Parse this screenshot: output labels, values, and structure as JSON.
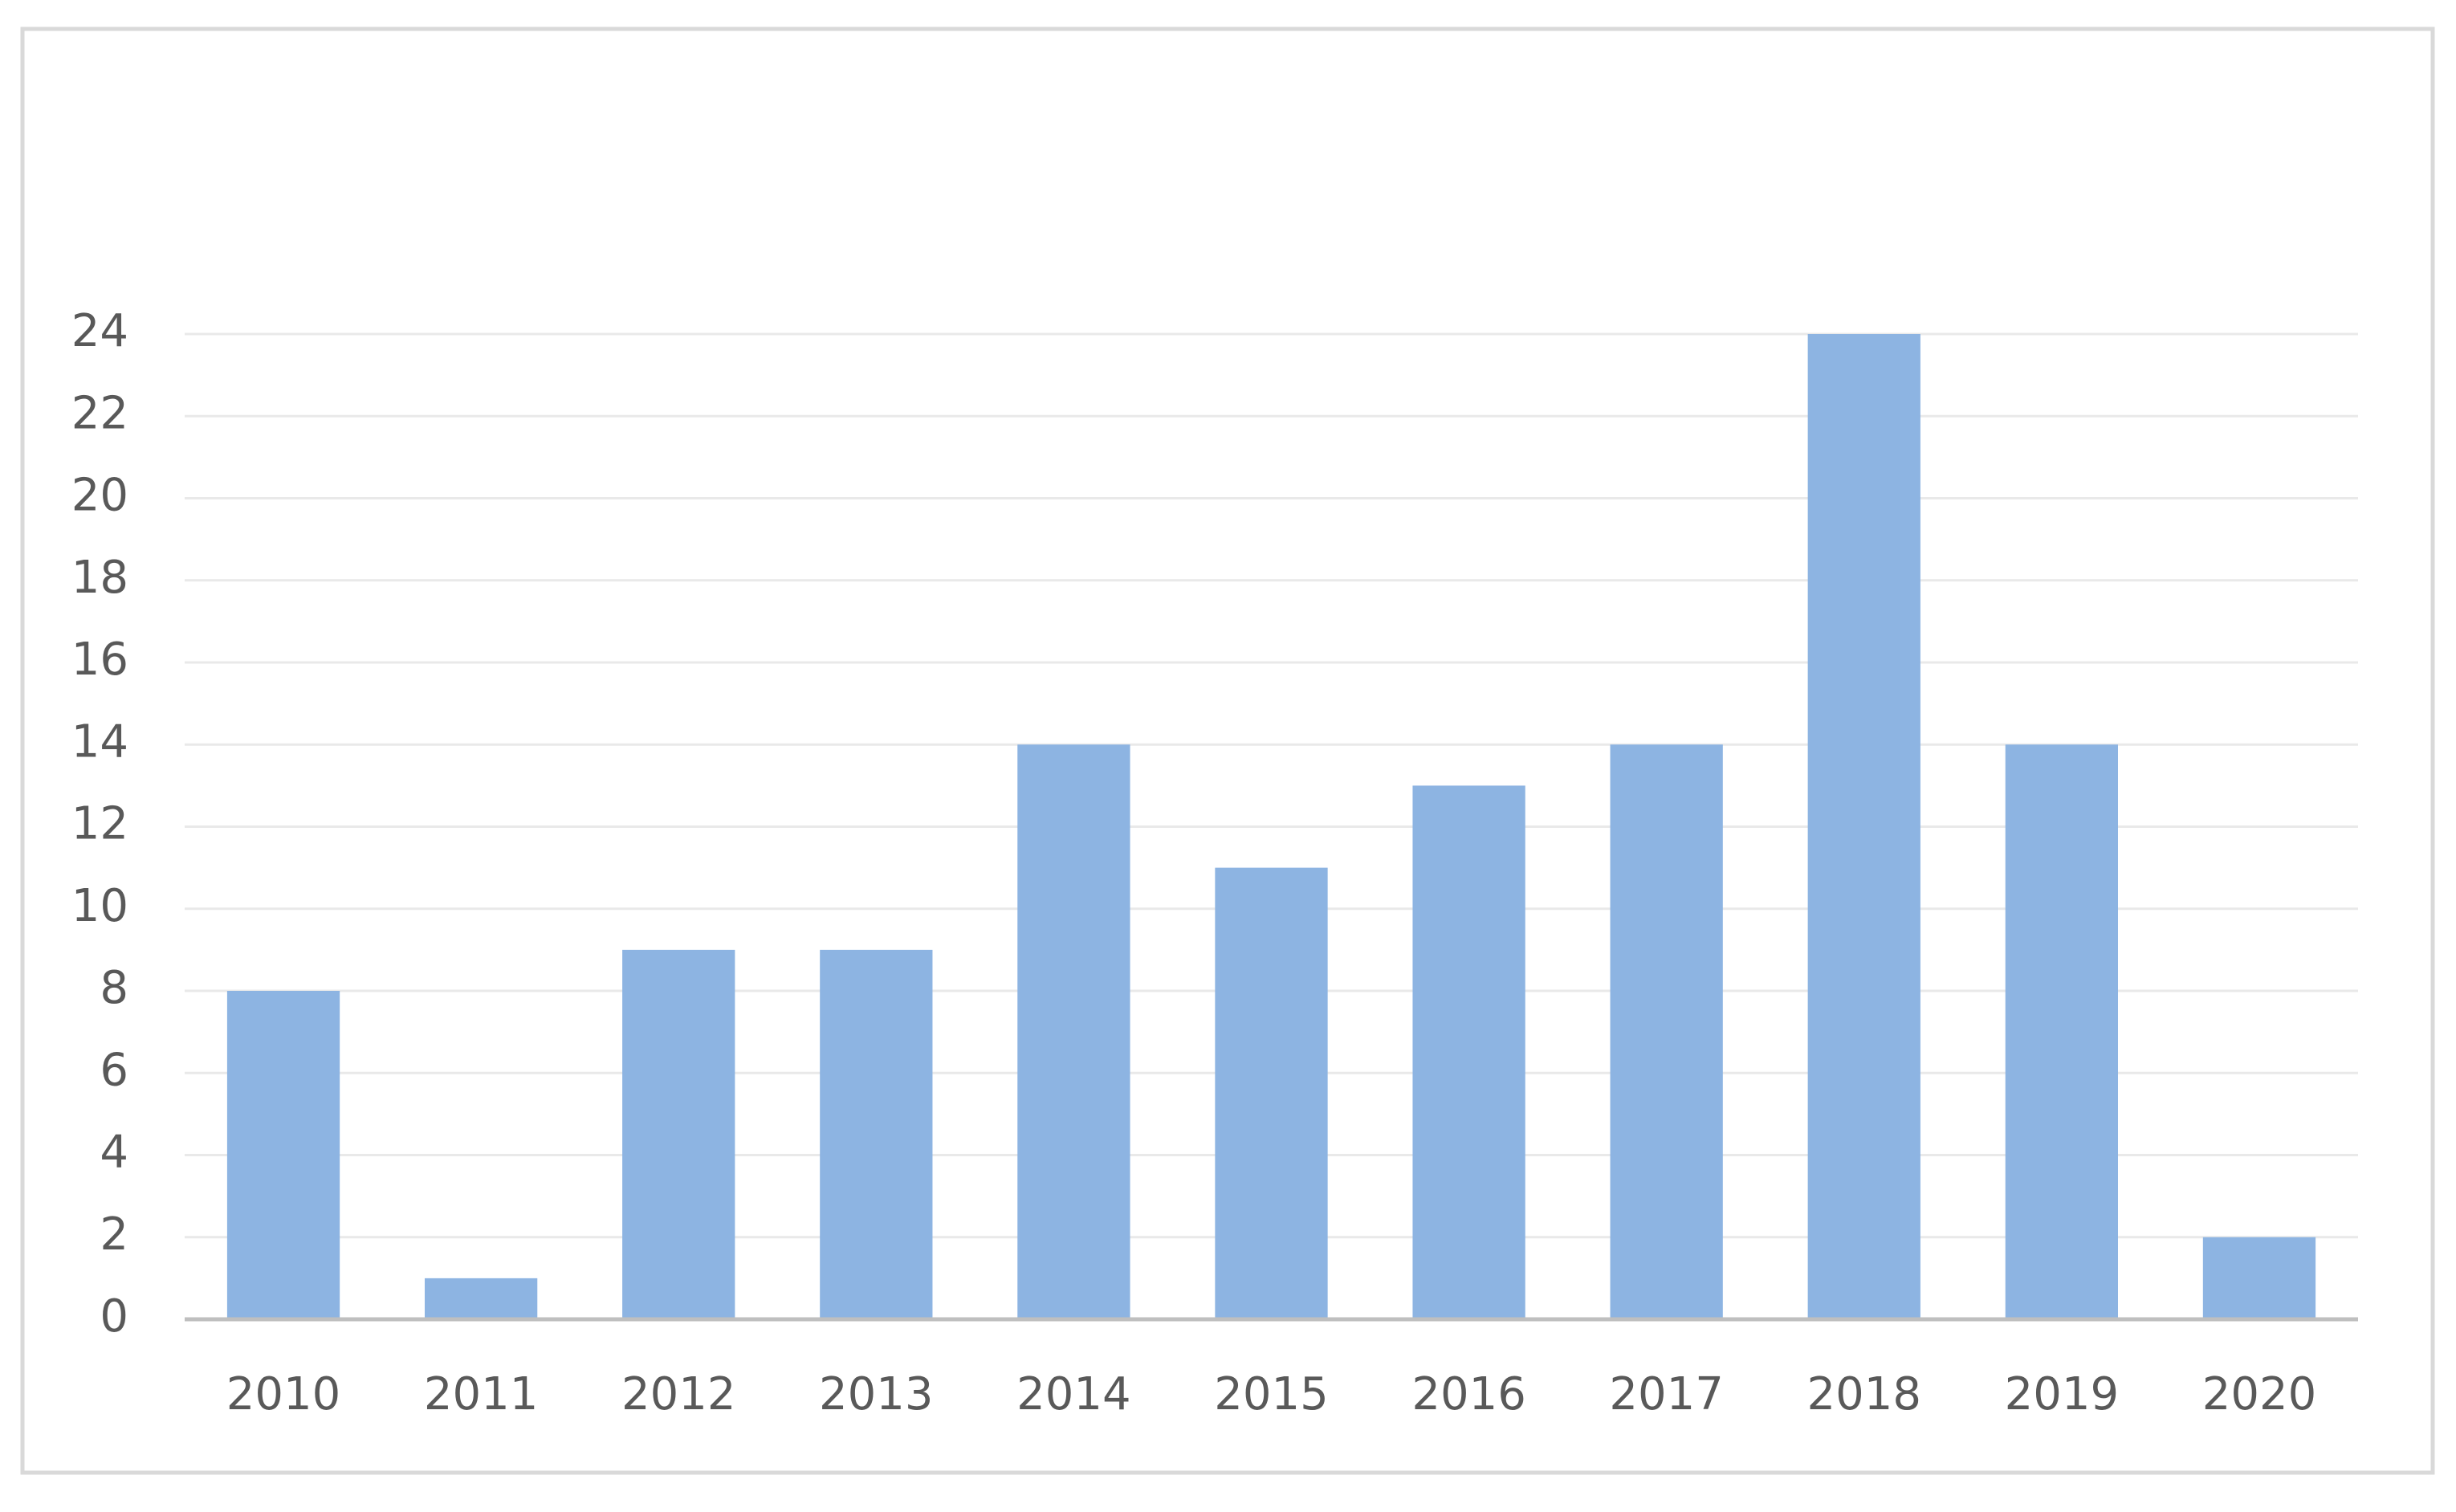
{
  "chart_data": {
    "type": "bar",
    "categories": [
      "2010",
      "2011",
      "2012",
      "2013",
      "2014",
      "2015",
      "2016",
      "2017",
      "2018",
      "2019",
      "2020"
    ],
    "values": [
      8,
      1,
      9,
      9,
      14,
      11,
      13,
      14,
      24,
      14,
      2
    ],
    "color": "#8db4e2",
    "ylim": [
      0,
      24
    ],
    "yticks": [
      0,
      2,
      4,
      6,
      8,
      10,
      12,
      14,
      16,
      18,
      20,
      22,
      24
    ],
    "grid": true
  }
}
